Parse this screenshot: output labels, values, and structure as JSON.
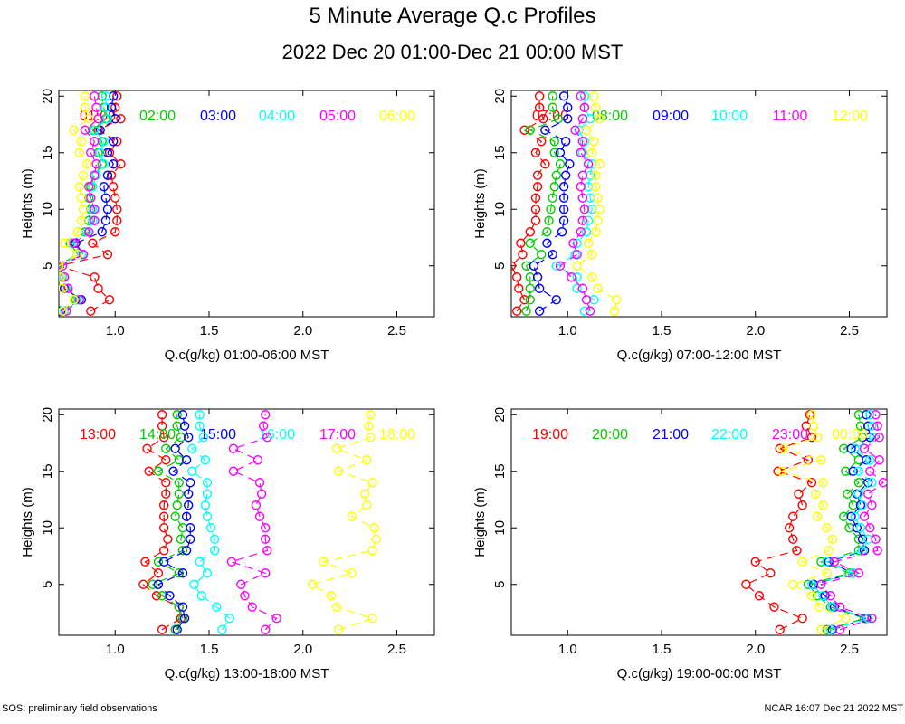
{
  "page": {
    "title": "5 Minute Average Q.c Profiles",
    "subtitle": "2022 Dec 20 01:00-Dec 21 00:00 MST",
    "footer_left": "SOS: preliminary field observations",
    "footer_right": "NCAR 16:07 Dec 21 2022 MST"
  },
  "colors": [
    "#ff0000",
    "#00cc00",
    "#0000ff",
    "#00ffff",
    "#ff00ff",
    "#ffff00"
  ],
  "chart_data": [
    {
      "type": "line",
      "xlabel": "Q.c(g/kg) 01:00-06:00 MST",
      "ylabel": "Heights (m)",
      "xlim": [
        0.7,
        2.7
      ],
      "ylim": [
        0.5,
        20.5
      ],
      "xticks": [
        "1.0",
        "1.5",
        "2.0",
        "2.5"
      ],
      "yticks": [
        "5",
        "10",
        "15",
        "20"
      ],
      "heights": [
        1,
        2,
        3,
        4,
        5,
        6,
        7,
        8,
        9,
        10,
        11,
        12,
        13,
        14,
        15,
        16,
        17,
        18,
        19,
        20
      ],
      "series": [
        {
          "name": "01:00",
          "values": [
            0.87,
            0.97,
            0.91,
            0.89,
            0.7,
            0.96,
            0.88,
            1.0,
            1.01,
            1.01,
            1.0,
            0.99,
            0.98,
            1.03,
            0.97,
            1.01,
            0.91,
            1.03,
            1.0,
            1.01
          ]
        },
        {
          "name": "02:00",
          "values": [
            0.72,
            0.79,
            0.73,
            0.71,
            0.69,
            0.8,
            0.76,
            0.84,
            0.86,
            0.87,
            0.86,
            0.87,
            0.89,
            0.93,
            0.91,
            0.93,
            0.88,
            0.95,
            0.94,
            0.93
          ]
        },
        {
          "name": "03:00",
          "values": [
            0.71,
            0.82,
            0.73,
            0.72,
            0.7,
            0.83,
            0.79,
            0.93,
            0.95,
            0.96,
            0.95,
            0.94,
            0.96,
            0.99,
            0.96,
            0.99,
            0.92,
            1.0,
            0.98,
            0.99
          ]
        },
        {
          "name": "04:00",
          "values": [
            0.73,
            0.8,
            0.74,
            0.72,
            0.7,
            0.82,
            0.77,
            0.85,
            0.88,
            0.88,
            0.87,
            0.88,
            0.9,
            0.94,
            0.92,
            0.94,
            0.89,
            0.96,
            0.95,
            0.95
          ]
        },
        {
          "name": "05:00",
          "values": [
            0.74,
            0.81,
            0.75,
            0.73,
            0.72,
            0.83,
            0.78,
            0.86,
            0.89,
            0.89,
            0.87,
            0.86,
            0.89,
            0.9,
            0.87,
            0.89,
            0.84,
            0.91,
            0.9,
            0.89
          ]
        },
        {
          "name": "06:00",
          "values": [
            0.72,
            0.78,
            0.72,
            0.71,
            0.7,
            0.8,
            0.73,
            0.8,
            0.82,
            0.83,
            0.82,
            0.81,
            0.83,
            0.85,
            0.81,
            0.82,
            0.78,
            0.86,
            0.84,
            0.84
          ]
        }
      ]
    },
    {
      "type": "line",
      "xlabel": "Q.c(g/kg) 07:00-12:00 MST",
      "ylabel": "Heights (m)",
      "xlim": [
        0.7,
        2.7
      ],
      "ylim": [
        0.5,
        20.5
      ],
      "xticks": [
        "1.0",
        "1.5",
        "2.0",
        "2.5"
      ],
      "yticks": [
        "5",
        "10",
        "15",
        "20"
      ],
      "heights": [
        1,
        2,
        3,
        4,
        5,
        6,
        7,
        8,
        9,
        10,
        11,
        12,
        13,
        14,
        15,
        16,
        17,
        18,
        19,
        20
      ],
      "series": [
        {
          "name": "07:00",
          "values": [
            0.73,
            0.77,
            0.74,
            0.73,
            0.7,
            0.76,
            0.75,
            0.8,
            0.83,
            0.83,
            0.83,
            0.84,
            0.84,
            0.88,
            0.83,
            0.86,
            0.77,
            0.87,
            0.85,
            0.85
          ]
        },
        {
          "name": "08:00",
          "values": [
            0.78,
            0.8,
            0.8,
            0.8,
            0.78,
            0.86,
            0.8,
            0.89,
            0.9,
            0.91,
            0.92,
            0.93,
            0.94,
            0.96,
            0.93,
            0.93,
            0.8,
            0.95,
            0.92,
            0.92
          ]
        },
        {
          "name": "09:00",
          "values": [
            0.85,
            0.94,
            0.85,
            0.84,
            0.82,
            0.92,
            0.89,
            0.97,
            0.98,
            0.98,
            0.98,
            0.98,
            0.99,
            1.01,
            0.96,
            0.99,
            0.88,
            1.0,
            1.0,
            0.98
          ]
        },
        {
          "name": "10:00",
          "values": [
            1.09,
            1.14,
            1.05,
            1.05,
            0.94,
            1.04,
            1.05,
            1.1,
            1.11,
            1.13,
            1.12,
            1.11,
            1.12,
            1.13,
            1.08,
            1.09,
            1.06,
            1.12,
            1.09,
            1.09
          ]
        },
        {
          "name": "11:00",
          "values": [
            1.12,
            1.1,
            1.08,
            1.02,
            0.96,
            1.05,
            1.03,
            1.07,
            1.08,
            1.09,
            1.08,
            1.07,
            1.08,
            1.11,
            1.07,
            1.08,
            1.04,
            1.08,
            1.09,
            1.07
          ]
        },
        {
          "name": "12:00",
          "values": [
            1.25,
            1.26,
            1.16,
            1.13,
            1.05,
            1.13,
            1.11,
            1.15,
            1.16,
            1.17,
            1.16,
            1.15,
            1.15,
            1.17,
            1.13,
            1.14,
            1.1,
            1.17,
            1.15,
            1.14
          ]
        }
      ]
    },
    {
      "type": "line",
      "xlabel": "Q.c(g/kg) 13:00-18:00 MST",
      "ylabel": "Heights (m)",
      "xlim": [
        0.7,
        2.7
      ],
      "ylim": [
        0.5,
        20.5
      ],
      "xticks": [
        "1.0",
        "1.5",
        "2.0",
        "2.5"
      ],
      "yticks": [
        "5",
        "10",
        "15",
        "20"
      ],
      "heights": [
        1,
        2,
        3,
        4,
        5,
        6,
        7,
        8,
        9,
        10,
        11,
        12,
        13,
        14,
        15,
        16,
        17,
        18,
        19,
        20
      ],
      "series": [
        {
          "name": "13:00",
          "values": [
            1.25,
            1.35,
            1.34,
            1.22,
            1.15,
            1.23,
            1.16,
            1.26,
            1.28,
            1.26,
            1.26,
            1.26,
            1.27,
            1.27,
            1.18,
            1.27,
            1.17,
            1.26,
            1.25,
            1.25
          ]
        },
        {
          "name": "14:00",
          "values": [
            1.32,
            1.36,
            1.34,
            1.25,
            1.2,
            1.34,
            1.23,
            1.36,
            1.35,
            1.36,
            1.32,
            1.33,
            1.34,
            1.34,
            1.23,
            1.34,
            1.27,
            1.35,
            1.33,
            1.33
          ]
        },
        {
          "name": "15:00",
          "values": [
            1.33,
            1.37,
            1.36,
            1.29,
            1.23,
            1.36,
            1.26,
            1.38,
            1.4,
            1.4,
            1.38,
            1.39,
            1.39,
            1.4,
            1.31,
            1.38,
            1.32,
            1.39,
            1.37,
            1.36
          ]
        },
        {
          "name": "16:00",
          "values": [
            1.57,
            1.61,
            1.54,
            1.46,
            1.42,
            1.49,
            1.45,
            1.53,
            1.53,
            1.51,
            1.49,
            1.48,
            1.49,
            1.49,
            1.41,
            1.48,
            1.41,
            1.47,
            1.45,
            1.45
          ]
        },
        {
          "name": "17:00",
          "values": [
            1.8,
            1.86,
            1.73,
            1.69,
            1.67,
            1.8,
            1.62,
            1.81,
            1.8,
            1.8,
            1.77,
            1.75,
            1.78,
            1.77,
            1.63,
            1.76,
            1.63,
            1.81,
            1.79,
            1.8
          ]
        },
        {
          "name": "18:00",
          "values": [
            2.19,
            2.37,
            2.18,
            2.15,
            2.05,
            2.26,
            2.11,
            2.37,
            2.39,
            2.38,
            2.26,
            2.34,
            2.33,
            2.37,
            2.19,
            2.34,
            2.18,
            2.36,
            2.35,
            2.36
          ]
        }
      ]
    },
    {
      "type": "line",
      "xlabel": "Q.c(g/kg) 19:00-00:00 MST",
      "ylabel": "Heights (m)",
      "xlim": [
        0.7,
        2.7
      ],
      "ylim": [
        0.5,
        20.5
      ],
      "xticks": [
        "1.0",
        "1.5",
        "2.0",
        "2.5"
      ],
      "yticks": [
        "5",
        "10",
        "15",
        "20"
      ],
      "heights": [
        1,
        2,
        3,
        4,
        5,
        6,
        7,
        8,
        9,
        10,
        11,
        12,
        13,
        14,
        15,
        16,
        17,
        18,
        19,
        20
      ],
      "series": [
        {
          "name": "19:00",
          "values": [
            2.13,
            2.25,
            2.1,
            2.02,
            1.95,
            2.08,
            2.0,
            2.22,
            2.2,
            2.18,
            2.2,
            2.25,
            2.23,
            2.3,
            2.12,
            2.28,
            2.13,
            2.3,
            2.27,
            2.29
          ]
        },
        {
          "name": "20:00",
          "values": [
            2.38,
            2.58,
            2.4,
            2.33,
            2.28,
            2.5,
            2.35,
            2.55,
            2.55,
            2.5,
            2.47,
            2.52,
            2.49,
            2.55,
            2.48,
            2.55,
            2.47,
            2.57,
            2.56,
            2.55
          ]
        },
        {
          "name": "21:00",
          "values": [
            2.41,
            2.59,
            2.42,
            2.37,
            2.31,
            2.52,
            2.39,
            2.58,
            2.57,
            2.54,
            2.51,
            2.56,
            2.54,
            2.6,
            2.52,
            2.59,
            2.51,
            2.61,
            2.6,
            2.59
          ]
        },
        {
          "name": "22:00",
          "values": [
            2.4,
            2.6,
            2.41,
            2.36,
            2.3,
            2.52,
            2.38,
            2.57,
            2.6,
            2.56,
            2.53,
            2.57,
            2.55,
            2.62,
            2.55,
            2.61,
            2.53,
            2.63,
            2.62,
            2.61
          ]
        },
        {
          "name": "23:00",
          "values": [
            2.45,
            2.62,
            2.45,
            2.4,
            2.35,
            2.55,
            2.42,
            2.65,
            2.64,
            2.61,
            2.58,
            2.62,
            2.6,
            2.68,
            2.61,
            2.66,
            2.58,
            2.66,
            2.65,
            2.64
          ]
        },
        {
          "name": "00:00",
          "values": [
            2.35,
            2.48,
            2.34,
            2.3,
            2.2,
            2.38,
            2.25,
            2.39,
            2.41,
            2.38,
            2.33,
            2.36,
            2.32,
            2.36,
            2.14,
            2.35,
            2.15,
            2.33,
            2.31,
            2.3
          ]
        }
      ]
    }
  ]
}
